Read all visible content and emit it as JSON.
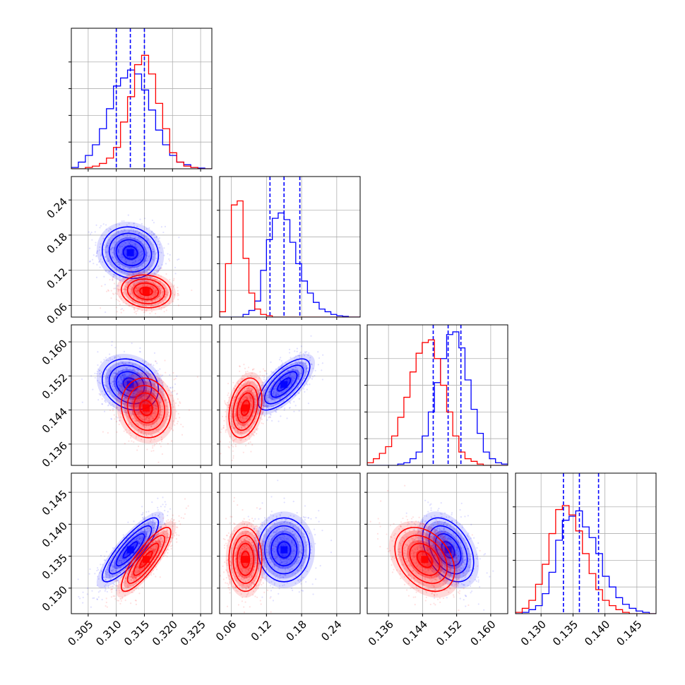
{
  "colors": {
    "blue": "#0000ff",
    "red": "#ff0000",
    "grid": "#b0b0b0"
  },
  "chart_data": {
    "type": "corner",
    "title": "",
    "grid": true,
    "parameters": [
      {
        "range": [
          0.302,
          0.327
        ],
        "ticks": [
          "0.305",
          "0.310",
          "0.315",
          "0.320",
          "0.325"
        ],
        "tick_values": [
          0.305,
          0.31,
          0.315,
          0.32,
          0.325
        ]
      },
      {
        "range": [
          0.04,
          0.28
        ],
        "ticks": [
          "0.06",
          "0.12",
          "0.18",
          "0.24"
        ],
        "tick_values": [
          0.06,
          0.12,
          0.18,
          0.24
        ]
      },
      {
        "range": [
          0.131,
          0.164
        ],
        "ticks": [
          "0.136",
          "0.144",
          "0.152",
          "0.160"
        ],
        "tick_values": [
          0.136,
          0.144,
          0.152,
          0.16
        ]
      },
      {
        "range": [
          0.126,
          0.148
        ],
        "ticks": [
          "0.130",
          "0.135",
          "0.140",
          "0.145"
        ],
        "tick_values": [
          0.13,
          0.135,
          0.14,
          0.145
        ]
      }
    ],
    "series": [
      {
        "color": "blue",
        "mean": [
          0.3125,
          0.15,
          0.15,
          0.136
        ],
        "std": [
          0.0025,
          0.022,
          0.003,
          0.0025
        ],
        "corr": [
          [
            1,
            -0.1,
            -0.2,
            0.85
          ],
          [
            -0.1,
            1,
            0.7,
            0.0
          ],
          [
            -0.2,
            0.7,
            1,
            -0.4
          ],
          [
            0.85,
            0.0,
            -0.4,
            1
          ]
        ],
        "quantiles": [
          [
            0.31,
            0.3125,
            0.315
          ],
          [
            0.126,
            0.15,
            0.177
          ],
          [
            0.1465,
            0.15,
            0.153
          ],
          [
            0.1335,
            0.136,
            0.139
          ]
        ],
        "hist": [
          {
            "edges": [
              0.302,
              0.327
            ],
            "values": [
              0.01,
              0.05,
              0.1,
              0.18,
              0.3,
              0.45,
              0.62,
              0.68,
              0.74,
              0.71,
              0.59,
              0.44,
              0.29,
              0.18,
              0.1,
              0.05,
              0.03,
              0.01,
              0.005,
              0.0
            ]
          },
          {
            "edges": [
              0.04,
              0.28
            ],
            "values": [
              0.0,
              0.0,
              0.0,
              0.0,
              0.02,
              0.05,
              0.12,
              0.35,
              0.58,
              0.74,
              0.78,
              0.73,
              0.56,
              0.4,
              0.27,
              0.18,
              0.11,
              0.06,
              0.04,
              0.02,
              0.01,
              0.005,
              0.0,
              0.0
            ]
          },
          {
            "edges": [
              0.131,
              0.164
            ],
            "values": [
              0.0,
              0.0,
              0.0,
              0.0,
              0.0,
              0.01,
              0.02,
              0.05,
              0.1,
              0.22,
              0.4,
              0.62,
              0.8,
              0.98,
              1.0,
              0.88,
              0.64,
              0.42,
              0.24,
              0.1,
              0.05,
              0.02,
              0.01
            ]
          },
          {
            "edges": [
              0.126,
              0.148
            ],
            "values": [
              0.0,
              0.01,
              0.03,
              0.06,
              0.15,
              0.31,
              0.55,
              0.7,
              0.73,
              0.77,
              0.65,
              0.57,
              0.45,
              0.28,
              0.2,
              0.12,
              0.07,
              0.04,
              0.02,
              0.01,
              0.0
            ]
          }
        ]
      },
      {
        "color": "red",
        "mean": [
          0.3153,
          0.084,
          0.1445,
          0.1345
        ],
        "std": [
          0.0022,
          0.014,
          0.0035,
          0.0025
        ],
        "corr": [
          [
            1,
            -0.1,
            -0.1,
            0.85
          ],
          [
            -0.1,
            1,
            0.3,
            0.0
          ],
          [
            -0.1,
            0.3,
            1,
            -0.35
          ],
          [
            0.85,
            0.0,
            -0.35,
            1
          ]
        ],
        "quantiles": [],
        "hist": [
          {
            "edges": [
              0.302,
              0.327
            ],
            "values": [
              0.0,
              0.0,
              0.01,
              0.02,
              0.04,
              0.08,
              0.16,
              0.35,
              0.54,
              0.78,
              0.85,
              0.71,
              0.49,
              0.3,
              0.12,
              0.05,
              0.02,
              0.01,
              0.0,
              0.0
            ]
          },
          {
            "edges": [
              0.04,
              0.28
            ],
            "values": [
              0.04,
              0.4,
              0.84,
              0.87,
              0.44,
              0.18,
              0.06,
              0.02,
              0.01,
              0.0,
              0.0,
              0.0,
              0.0,
              0.0,
              0.0,
              0.0,
              0.0,
              0.0,
              0.0,
              0.0,
              0.0,
              0.0,
              0.0,
              0.0
            ]
          },
          {
            "edges": [
              0.131,
              0.164
            ],
            "values": [
              0.02,
              0.05,
              0.09,
              0.14,
              0.22,
              0.36,
              0.51,
              0.7,
              0.84,
              0.92,
              0.94,
              0.8,
              0.6,
              0.4,
              0.22,
              0.1,
              0.05,
              0.03,
              0.01,
              0.0,
              0.0,
              0.0,
              0.0
            ]
          },
          {
            "edges": [
              0.126,
              0.148
            ],
            "values": [
              0.01,
              0.04,
              0.1,
              0.22,
              0.37,
              0.6,
              0.78,
              0.81,
              0.74,
              0.62,
              0.45,
              0.3,
              0.18,
              0.1,
              0.06,
              0.03,
              0.01,
              0.0,
              0.0,
              0.0,
              0.0
            ]
          }
        ]
      }
    ]
  }
}
